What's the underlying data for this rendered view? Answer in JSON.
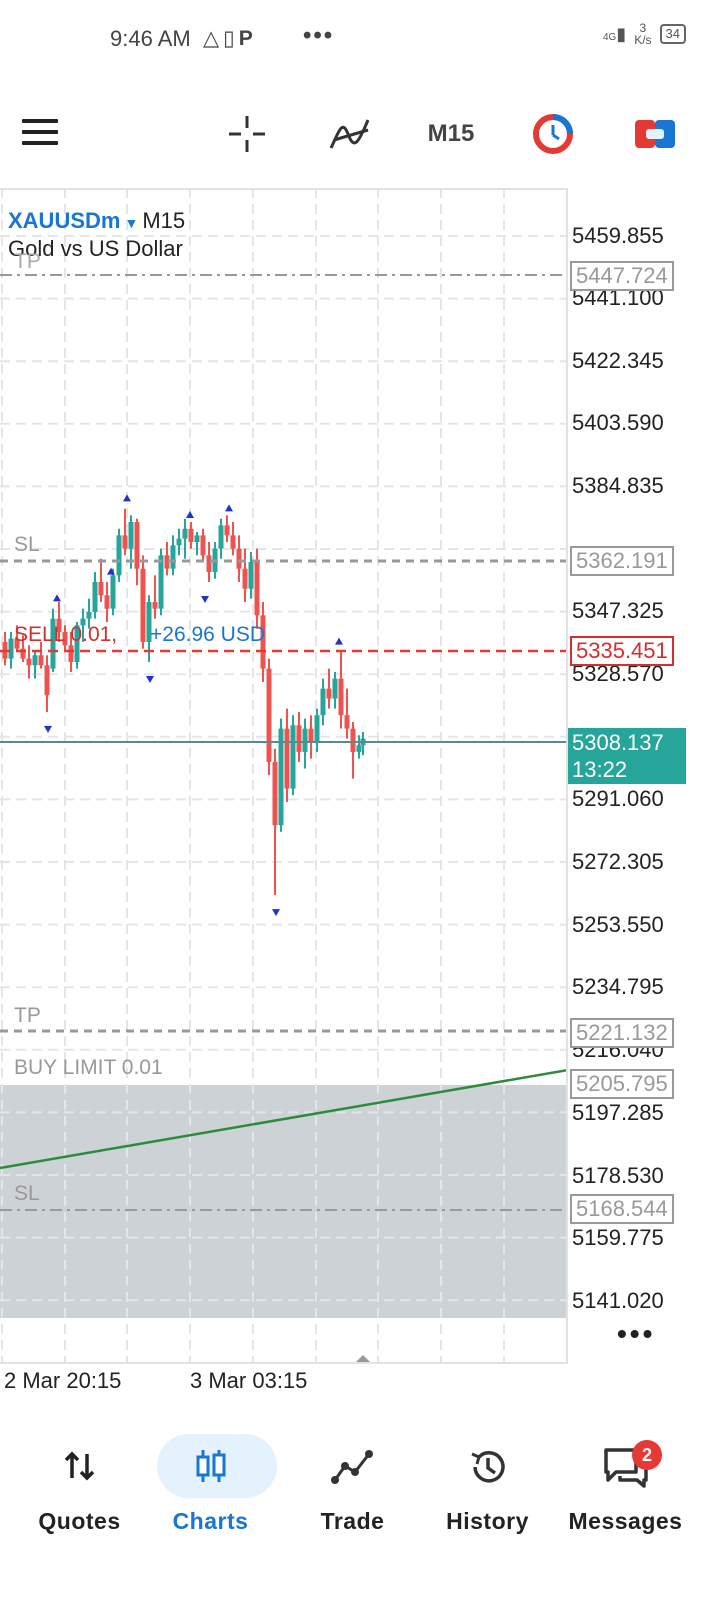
{
  "status_bar": {
    "time": "9:46 AM",
    "network_type": "4G",
    "speed_value": "3",
    "speed_unit": "K/s",
    "battery": "34"
  },
  "toolbar": {
    "timeframe": "M15"
  },
  "chart": {
    "symbol": "XAUUSDm",
    "timeframe": "M15",
    "description": "Gold vs US Dollar",
    "price_ticks": [
      "5459.855",
      "5441.100",
      "5422.345",
      "5403.590",
      "5384.835",
      "5347.325",
      "5328.570",
      "5291.060",
      "5272.305",
      "5253.550",
      "5234.795",
      "5216.040",
      "5197.285",
      "5178.530",
      "5159.775",
      "5141.020"
    ],
    "time_labels": [
      "2 Mar 20:15",
      "3 Mar 03:15"
    ],
    "current_price": "5308.137",
    "countdown": "13:22",
    "trade_line_label": "SELL 0.01,",
    "trade_profit": "+26.96 USD",
    "sell_price": "5335.451",
    "tp1_label": "TP",
    "tp1_price": "5447.724",
    "sl1_label": "SL",
    "sl1_price": "5362.191",
    "tp2_label": "TP",
    "tp2_price": "5221.132",
    "buy_limit_label": "BUY LIMIT 0.01",
    "buy_limit_price": "5205.795",
    "sl2_label": "SL",
    "sl2_price": "5168.544",
    "colors": {
      "bull": "#26a69a",
      "bear": "#ef5350",
      "sell_line": "#e53935",
      "price_line": "#5b8a8a",
      "trendline": "#2e8b3e",
      "accent": "#1976d2"
    }
  },
  "nav": {
    "items": [
      {
        "label": "Quotes",
        "icon": "quotes-icon"
      },
      {
        "label": "Charts",
        "icon": "charts-icon",
        "active": true
      },
      {
        "label": "Trade",
        "icon": "trade-icon"
      },
      {
        "label": "History",
        "icon": "history-icon"
      },
      {
        "label": "Messages",
        "icon": "messages-icon",
        "badge": "2"
      }
    ]
  }
}
